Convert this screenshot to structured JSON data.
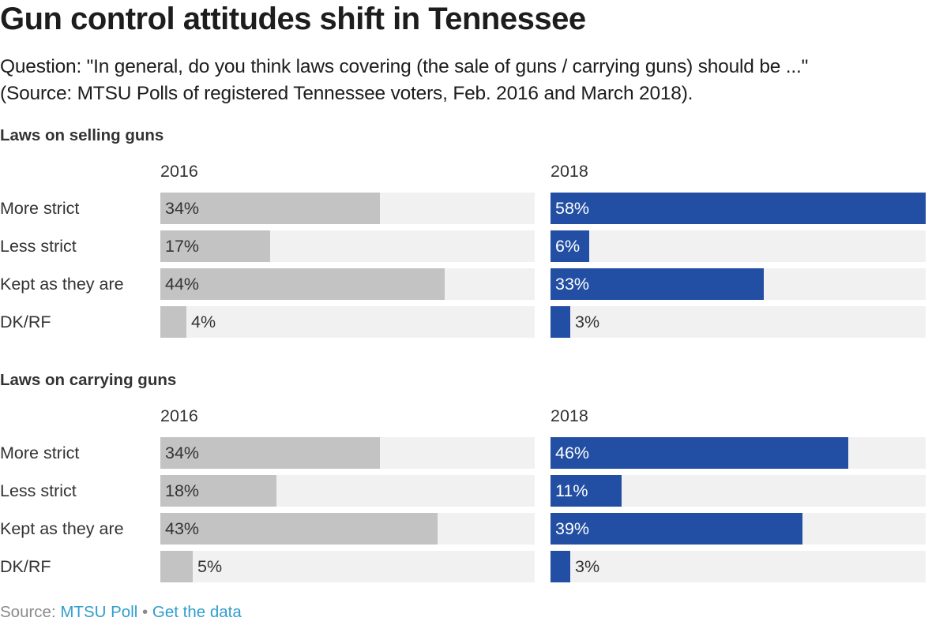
{
  "title": "Gun control attitudes shift in Tennessee",
  "subtitle": {
    "line1": "Question: \"In general, do you think laws covering (the sale of guns / carrying guns) should be ...\"",
    "line2": "(Source: MTSU Polls of registered Tennessee voters, Feb. 2016 and March 2018)."
  },
  "colors": {
    "y2016_bar": "#c3c3c3",
    "y2018_bar": "#224fa3",
    "bar_background": "#f1f1f1",
    "link": "#2f9ecc"
  },
  "footer": {
    "source_label": "Source: ",
    "source_link": "MTSU Poll",
    "separator": " • ",
    "data_link": "Get the data"
  },
  "chart_data": {
    "type": "bar",
    "orientation": "horizontal",
    "title": "Gun control attitudes shift in Tennessee",
    "scale_max": 58,
    "value_suffix": "%",
    "categories": [
      "More strict",
      "Less strict",
      "Kept as they are",
      "DK/RF"
    ],
    "column_headers": [
      "2016",
      "2018"
    ],
    "panels": [
      {
        "title": "Laws on selling guns",
        "series": [
          {
            "name": "2016",
            "values": [
              34,
              17,
              44,
              4
            ]
          },
          {
            "name": "2018",
            "values": [
              58,
              6,
              33,
              3
            ]
          }
        ]
      },
      {
        "title": "Laws on carrying guns",
        "series": [
          {
            "name": "2016",
            "values": [
              34,
              18,
              43,
              5
            ]
          },
          {
            "name": "2018",
            "values": [
              46,
              11,
              39,
              3
            ]
          }
        ]
      }
    ],
    "grid": false,
    "legend": "none"
  }
}
